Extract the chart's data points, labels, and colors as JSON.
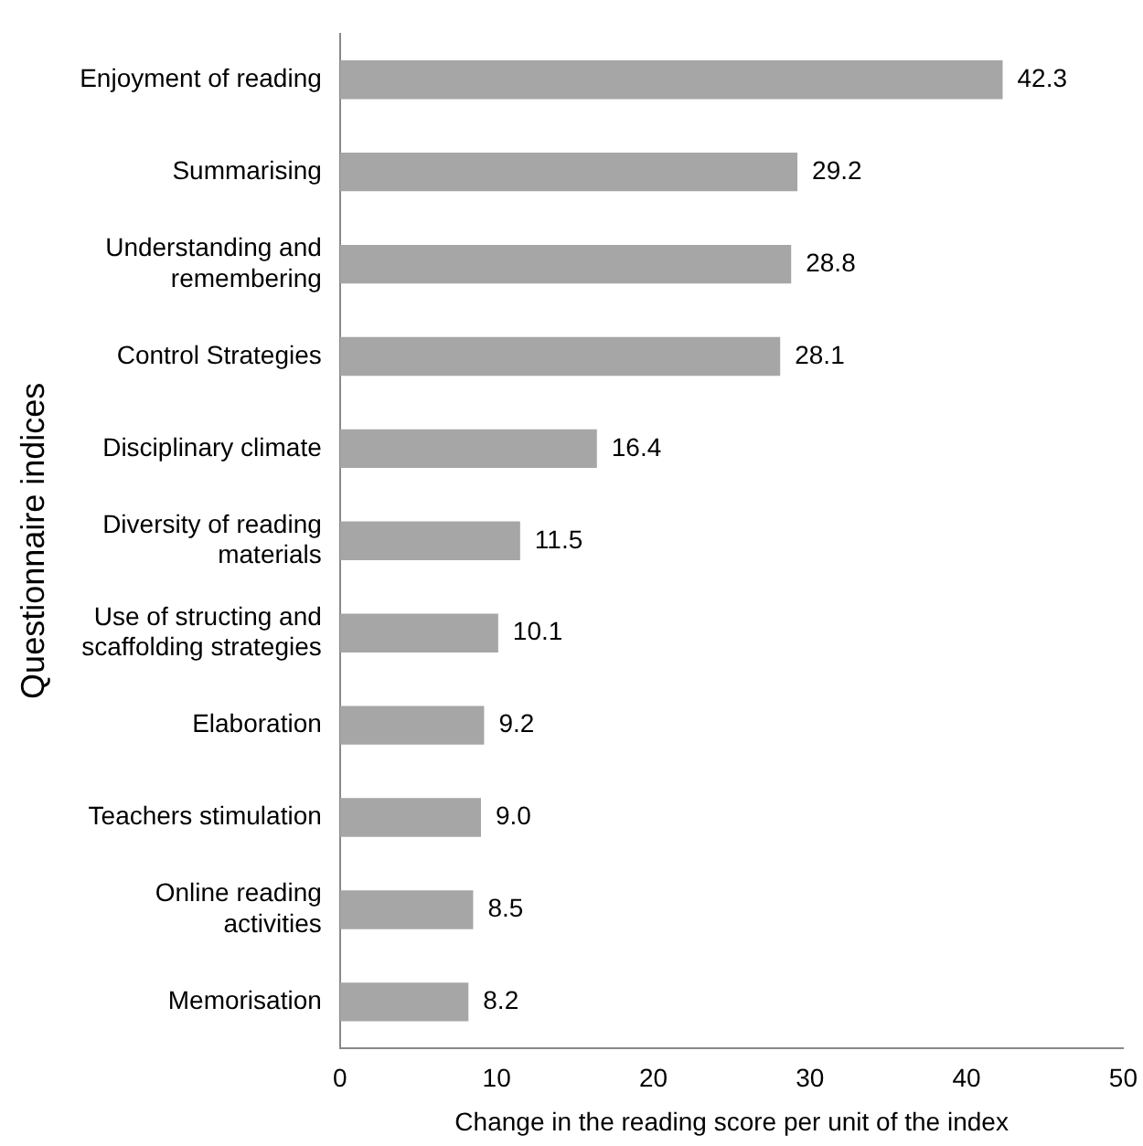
{
  "chart_data": {
    "type": "bar",
    "orientation": "horizontal",
    "xlabel": "Change in the reading score per unit of the index",
    "ylabel": "Questionnaire indices",
    "categories": [
      "Enjoyment of reading",
      "Summarising",
      "Understanding and remembering",
      "Control Strategies",
      "Disciplinary climate",
      "Diversity of reading materials",
      "Use of structing and scaffolding strategies",
      "Elaboration",
      "Teachers stimulation",
      "Online reading activities",
      "Memorisation"
    ],
    "values": [
      42.3,
      29.2,
      28.8,
      28.1,
      16.4,
      11.5,
      10.1,
      9.2,
      9.0,
      8.5,
      8.2
    ],
    "value_labels": [
      "42.3",
      "29.2",
      "28.8",
      "28.1",
      "16.4",
      "11.5",
      "10.1",
      "9.2",
      "9.0",
      "8.5",
      "8.2"
    ],
    "color": "#a6a6a6",
    "xlim": [
      0,
      50
    ],
    "xticks": [
      0,
      10,
      20,
      30,
      40,
      50
    ],
    "grid": false,
    "legend": false
  }
}
